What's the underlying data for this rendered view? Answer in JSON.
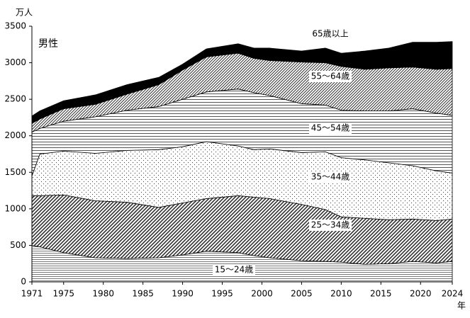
{
  "chart_data": {
    "type": "stacked_area",
    "y_label": "万人",
    "x_label": "年",
    "annotation": "男性",
    "x": [
      1971,
      1972,
      1975,
      1979,
      1983,
      1987,
      1990,
      1993,
      1997,
      1999,
      2001,
      2005,
      2008,
      2010,
      2013,
      2016,
      2019,
      2022,
      2024
    ],
    "series": [
      {
        "name": "15～24歳",
        "color": "#555555",
        "values": [
          500,
          480,
          400,
          330,
          320,
          330,
          370,
          420,
          400,
          360,
          330,
          290,
          280,
          270,
          240,
          250,
          280,
          260,
          280
        ]
      },
      {
        "name": "25～34歳",
        "color": "#333333",
        "values": [
          680,
          700,
          790,
          780,
          770,
          690,
          710,
          720,
          780,
          800,
          810,
          770,
          710,
          620,
          630,
          600,
          580,
          580,
          580
        ]
      },
      {
        "name": "35～44歳",
        "color": "#444444",
        "values": [
          270,
          570,
          600,
          650,
          710,
          790,
          770,
          780,
          680,
          650,
          680,
          710,
          790,
          810,
          800,
          780,
          730,
          680,
          630
        ]
      },
      {
        "name": "45～54歳",
        "color": "#555555",
        "values": [
          600,
          350,
          410,
          500,
          550,
          590,
          650,
          680,
          780,
          780,
          730,
          670,
          640,
          650,
          670,
          710,
          780,
          790,
          790
        ]
      },
      {
        "name": "55～64歳",
        "color": "#333333",
        "values": [
          120,
          130,
          170,
          170,
          220,
          300,
          400,
          480,
          490,
          470,
          480,
          570,
          580,
          600,
          570,
          590,
          570,
          600,
          640
        ]
      },
      {
        "name": "65歳以上",
        "color": "#000000",
        "values": [
          100,
          110,
          110,
          130,
          130,
          100,
          80,
          110,
          130,
          140,
          170,
          150,
          200,
          180,
          250,
          270,
          340,
          370,
          370
        ]
      }
    ],
    "xlim": [
      1971,
      2024
    ],
    "xticks": [
      1971,
      1975,
      1980,
      1985,
      1990,
      1995,
      2000,
      2005,
      2010,
      2015,
      2020,
      2024
    ],
    "ylim": [
      0,
      3500
    ],
    "yticks": [
      0,
      500,
      1000,
      1500,
      2000,
      2500,
      3000,
      3500
    ]
  }
}
